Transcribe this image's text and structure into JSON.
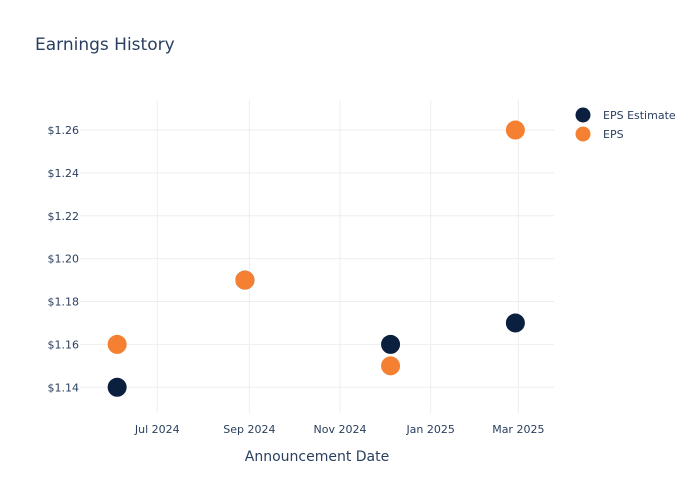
{
  "chart_data": {
    "type": "scatter",
    "title": "Earnings History",
    "xlabel": "Announcement Date",
    "ylabel": "",
    "x_axis": {
      "type": "date",
      "range": [
        "2024-05-10",
        "2025-03-25"
      ],
      "tick_values": [
        "2024-07-01",
        "2024-09-01",
        "2024-11-01",
        "2025-01-01",
        "2025-03-01"
      ],
      "tick_labels": [
        "Jul 2024",
        "Sep 2024",
        "Nov 2024",
        "Jan 2025",
        "Mar 2025"
      ]
    },
    "y_axis": {
      "range": [
        1.128,
        1.274
      ],
      "tick_values": [
        1.14,
        1.16,
        1.18,
        1.2,
        1.22,
        1.24,
        1.26
      ],
      "tick_labels": [
        "$1.14",
        "$1.16",
        "$1.18",
        "$1.20",
        "$1.22",
        "$1.24",
        "$1.26"
      ]
    },
    "grid": true,
    "legend_position": "top-right",
    "series": [
      {
        "name": "EPS Estimate",
        "color": "#0b1f3f",
        "points": [
          {
            "x": "2024-06-04",
            "y": 1.14
          },
          {
            "x": "2024-08-29",
            "y": 1.19
          },
          {
            "x": "2024-12-05",
            "y": 1.16
          },
          {
            "x": "2025-02-27",
            "y": 1.17
          }
        ]
      },
      {
        "name": "EPS",
        "color": "#f58031",
        "points": [
          {
            "x": "2024-06-04",
            "y": 1.16
          },
          {
            "x": "2024-08-29",
            "y": 1.19
          },
          {
            "x": "2024-12-05",
            "y": 1.15
          },
          {
            "x": "2025-02-27",
            "y": 1.26
          }
        ]
      }
    ]
  }
}
